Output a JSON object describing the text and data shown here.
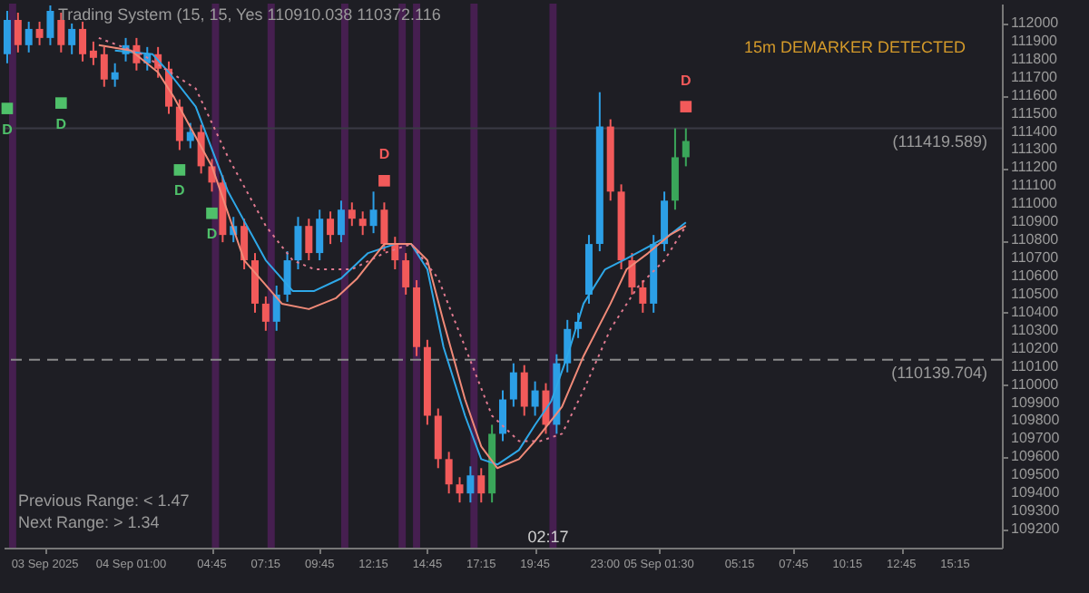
{
  "chart_data": {
    "type": "candlestick",
    "annotations": [
      "Trading System (15, 15, Yes 110910.038 110372.116",
      "15m DEMARKER DETECTED",
      "Previous Range: < 1.47",
      "Next Range: > 1.34",
      "02:17"
    ],
    "x": [
      "2025-09-03T19:15",
      "2025-09-03T19:45",
      "2025-09-03T20:15",
      "2025-09-03T20:45",
      "2025-09-03T21:15",
      "2025-09-03T21:45",
      "2025-09-03T22:15",
      "2025-09-03T22:45",
      "2025-09-03T23:15",
      "2025-09-03T23:45",
      "2025-09-04T00:15",
      "2025-09-04T00:45",
      "2025-09-04T01:15",
      "2025-09-04T01:45",
      "2025-09-04T02:15",
      "2025-09-04T02:45",
      "2025-09-04T03:15",
      "2025-09-04T03:45",
      "2025-09-04T04:15",
      "2025-09-04T04:45",
      "2025-09-04T05:15",
      "2025-09-04T05:45",
      "2025-09-04T06:15",
      "2025-09-04T06:45",
      "2025-09-04T07:15",
      "2025-09-04T07:45",
      "2025-09-04T08:15",
      "2025-09-04T08:45",
      "2025-09-04T09:15",
      "2025-09-04T09:45",
      "2025-09-04T10:15",
      "2025-09-04T10:45",
      "2025-09-04T11:15",
      "2025-09-04T11:45",
      "2025-09-04T12:15",
      "2025-09-04T12:45",
      "2025-09-04T13:15",
      "2025-09-04T13:45",
      "2025-09-04T14:15",
      "2025-09-04T14:45",
      "2025-09-04T15:15",
      "2025-09-04T15:45",
      "2025-09-04T16:15",
      "2025-09-04T16:45",
      "2025-09-04T17:15",
      "2025-09-04T17:45",
      "2025-09-04T18:15",
      "2025-09-04T18:45",
      "2025-09-04T19:15",
      "2025-09-04T19:45",
      "2025-09-04T20:15",
      "2025-09-04T20:45",
      "2025-09-04T21:15",
      "2025-09-04T21:45",
      "2025-09-04T22:15",
      "2025-09-04T22:45",
      "2025-09-04T23:15",
      "2025-09-04T23:45",
      "2025-09-05T00:15",
      "2025-09-05T00:45",
      "2025-09-05T01:15",
      "2025-09-05T01:45",
      "2025-09-05T02:15",
      "2025-09-05T02:45"
    ],
    "ohlc": [
      [
        111830,
        112070,
        111780,
        112020
      ],
      [
        112020,
        112060,
        111840,
        111880
      ],
      [
        111880,
        112010,
        111840,
        111970
      ],
      [
        111970,
        112010,
        111880,
        111920
      ],
      [
        111920,
        112100,
        111880,
        112070
      ],
      [
        112020,
        112060,
        111840,
        111880
      ],
      [
        111880,
        112000,
        111830,
        111970
      ],
      [
        111970,
        112010,
        111790,
        111830
      ],
      [
        111850,
        111900,
        111770,
        111810
      ],
      [
        111830,
        111870,
        111650,
        111690
      ],
      [
        111690,
        111780,
        111650,
        111730
      ],
      [
        111830,
        111920,
        111790,
        111880
      ],
      [
        111880,
        111920,
        111740,
        111780
      ],
      [
        111780,
        111870,
        111740,
        111830
      ],
      [
        111830,
        111870,
        111700,
        111750
      ],
      [
        111750,
        111790,
        111500,
        111540
      ],
      [
        111540,
        111580,
        111300,
        111350
      ],
      [
        111350,
        111450,
        111310,
        111400
      ],
      [
        111400,
        111440,
        111170,
        111210
      ],
      [
        111210,
        111250,
        111070,
        111120
      ],
      [
        111120,
        111160,
        110790,
        110830
      ],
      [
        110830,
        110930,
        110790,
        110880
      ],
      [
        110880,
        110920,
        110640,
        110690
      ],
      [
        110690,
        110730,
        110400,
        110450
      ],
      [
        110450,
        110490,
        110300,
        110350
      ],
      [
        110350,
        110550,
        110300,
        110500
      ],
      [
        110500,
        110740,
        110460,
        110690
      ],
      [
        110690,
        110930,
        110640,
        110880
      ],
      [
        110880,
        110920,
        110690,
        110730
      ],
      [
        110730,
        110970,
        110690,
        110920
      ],
      [
        110920,
        110960,
        110780,
        110830
      ],
      [
        110830,
        111020,
        110790,
        110970
      ],
      [
        110970,
        111010,
        110880,
        110920
      ],
      [
        110920,
        110960,
        110830,
        110880
      ],
      [
        110880,
        111070,
        110840,
        110970
      ],
      [
        110970,
        111010,
        110740,
        110780
      ],
      [
        110780,
        110820,
        110640,
        110690
      ],
      [
        110690,
        110730,
        110500,
        110540
      ],
      [
        110540,
        110580,
        110160,
        110210
      ],
      [
        110210,
        110250,
        109780,
        109830
      ],
      [
        109830,
        109870,
        109540,
        109590
      ],
      [
        109590,
        109630,
        109400,
        109450
      ],
      [
        109450,
        109490,
        109350,
        109400
      ],
      [
        109400,
        109550,
        109350,
        109500
      ],
      [
        109500,
        109540,
        109350,
        109400
      ],
      [
        109400,
        109780,
        109350,
        109730
      ],
      [
        109730,
        109970,
        109690,
        109920
      ],
      [
        109920,
        110120,
        109880,
        110070
      ],
      [
        110070,
        110110,
        109830,
        109880
      ],
      [
        109880,
        110020,
        109830,
        109970
      ],
      [
        109970,
        110010,
        109730,
        109780
      ],
      [
        109780,
        110170,
        109730,
        110120
      ],
      [
        110120,
        110360,
        110070,
        110310
      ],
      [
        110310,
        110400,
        110260,
        110350
      ],
      [
        110500,
        110830,
        110450,
        110780
      ],
      [
        110780,
        111620,
        110740,
        111430
      ],
      [
        111430,
        111470,
        111020,
        111070
      ],
      [
        111070,
        111110,
        110640,
        110690
      ],
      [
        110690,
        110730,
        110500,
        110540
      ],
      [
        110540,
        110580,
        110400,
        110450
      ],
      [
        110450,
        110830,
        110400,
        110780
      ],
      [
        110780,
        111070,
        110740,
        111020
      ],
      [
        111020,
        111420,
        110970,
        111260
      ],
      [
        111260,
        111420,
        111210,
        111350
      ]
    ],
    "colors": [
      "#2c9fe6",
      "#f25a5a",
      "#2c9fe6",
      "#f25a5a",
      "#2c9fe6",
      "#f25a5a",
      "#2c9fe6",
      "#f25a5a",
      "#f25a5a",
      "#f25a5a",
      "#2c9fe6",
      "#2c9fe6",
      "#f25a5a",
      "#2c9fe6",
      "#f25a5a",
      "#f25a5a",
      "#f25a5a",
      "#2c9fe6",
      "#f25a5a",
      "#f25a5a",
      "#f25a5a",
      "#2c9fe6",
      "#f25a5a",
      "#f25a5a",
      "#f25a5a",
      "#2c9fe6",
      "#2c9fe6",
      "#2c9fe6",
      "#f25a5a",
      "#2c9fe6",
      "#f25a5a",
      "#2c9fe6",
      "#f25a5a",
      "#f25a5a",
      "#2c9fe6",
      "#f25a5a",
      "#f25a5a",
      "#f25a5a",
      "#f25a5a",
      "#f25a5a",
      "#f25a5a",
      "#f25a5a",
      "#f25a5a",
      "#2c9fe6",
      "#f25a5a",
      "#3aa65a",
      "#2c9fe6",
      "#2c9fe6",
      "#f25a5a",
      "#2c9fe6",
      "#f25a5a",
      "#2c9fe6",
      "#2c9fe6",
      "#2c9fe6",
      "#2c9fe6",
      "#2c9fe6",
      "#f25a5a",
      "#f25a5a",
      "#f25a5a",
      "#f25a5a",
      "#2c9fe6",
      "#2c9fe6",
      "#3aa65a",
      "#3aa65a"
    ],
    "series": [
      {
        "type": "line",
        "color": "#2ea8e8",
        "x": [
          "2025-09-04T00:15",
          "2025-09-04T02:00",
          "2025-09-04T02:45",
          "2025-09-04T04:00",
          "2025-09-04T05:30",
          "2025-09-04T07:15",
          "2025-09-04T08:30",
          "2025-09-04T09:30",
          "2025-09-04T10:45",
          "2025-09-04T12:00",
          "2025-09-04T13:15",
          "2025-09-04T14:00",
          "2025-09-04T14:45",
          "2025-09-04T15:30",
          "2025-09-04T16:30",
          "2025-09-04T17:15",
          "2025-09-04T18:00",
          "2025-09-04T19:00",
          "2025-09-04T19:45",
          "2025-09-04T20:30",
          "2025-09-04T21:15",
          "2025-09-04T22:00",
          "2025-09-04T23:00",
          "2025-09-05T00:00",
          "2025-09-05T01:15",
          "2025-09-05T02:00",
          "2025-09-05T02:45"
        ],
        "values": [
          111850,
          111830,
          111730,
          111540,
          111070,
          110690,
          110520,
          110520,
          110590,
          110730,
          110780,
          110780,
          110640,
          110210,
          109830,
          109590,
          109560,
          109640,
          109780,
          109910,
          110160,
          110450,
          110640,
          110700,
          110780,
          110830,
          110900
        ]
      },
      {
        "type": "line",
        "color": "#f08a78",
        "x": [
          "2025-09-03T23:30",
          "2025-09-04T01:00",
          "2025-09-04T02:15",
          "2025-09-04T03:00",
          "2025-09-04T04:45",
          "2025-09-04T06:15",
          "2025-09-04T08:00",
          "2025-09-04T09:15",
          "2025-09-04T10:30",
          "2025-09-04T11:30",
          "2025-09-04T12:45",
          "2025-09-04T14:00",
          "2025-09-04T14:45",
          "2025-09-04T15:30",
          "2025-09-04T16:30",
          "2025-09-04T17:15",
          "2025-09-04T18:00",
          "2025-09-04T19:00",
          "2025-09-04T19:45",
          "2025-09-04T21:00",
          "2025-09-04T22:00",
          "2025-09-04T23:15",
          "2025-09-05T00:00",
          "2025-09-05T01:00",
          "2025-09-05T02:00",
          "2025-09-05T02:45"
        ],
        "values": [
          111880,
          111850,
          111730,
          111590,
          111210,
          110690,
          110450,
          110420,
          110480,
          110590,
          110780,
          110780,
          110690,
          110350,
          109920,
          109660,
          109540,
          109590,
          109690,
          109880,
          110160,
          110450,
          110640,
          110730,
          110830,
          110880
        ]
      },
      {
        "type": "line",
        "color": "#e07a90",
        "line_style": "dotted",
        "x": [
          "2025-09-03T23:30",
          "2025-09-04T01:30",
          "2025-09-04T04:00",
          "2025-09-04T05:30",
          "2025-09-04T07:15",
          "2025-09-04T08:30",
          "2025-09-04T09:30",
          "2025-09-04T11:15",
          "2025-09-04T12:45",
          "2025-09-04T14:00",
          "2025-09-04T15:15",
          "2025-09-04T16:30",
          "2025-09-04T17:45",
          "2025-09-04T19:00",
          "2025-09-04T20:00",
          "2025-09-04T21:00",
          "2025-09-04T22:00",
          "2025-09-04T23:15",
          "2025-09-05T00:30",
          "2025-09-05T01:45",
          "2025-09-05T02:45"
        ],
        "values": [
          111920,
          111830,
          111640,
          111260,
          110880,
          110690,
          110640,
          110640,
          110730,
          110780,
          110590,
          110210,
          109830,
          109690,
          109690,
          109730,
          109970,
          110310,
          110540,
          110690,
          110880
        ]
      },
      {
        "type": "scatter",
        "marker": "square",
        "color": "#4fc06a",
        "x": [
          "2025-09-03T19:15",
          "2025-09-03T21:45",
          "2025-09-04T03:15",
          "2025-09-04T04:45"
        ],
        "values": [
          111530,
          111560,
          111190,
          110950
        ],
        "value_labels": [
          "D",
          "D",
          "D",
          "D"
        ]
      },
      {
        "type": "scatter",
        "marker": "square",
        "color": "#f25a5a",
        "x": [
          "2025-09-04T12:45",
          "2025-09-05T02:45"
        ],
        "values": [
          111130,
          111540
        ],
        "value_labels": [
          "D",
          "D"
        ]
      }
    ],
    "xlim": [
      "2025-09-03T19:05",
      "2025-09-05T17:25"
    ],
    "ylim": [
      109100,
      112110
    ],
    "xticks": [
      {
        "value": "2025-09-03T21:00",
        "label": "03 Sep 2025"
      },
      {
        "value": "2025-09-04T01:00",
        "label": "04 Sep 01:00"
      },
      {
        "value": "2025-09-04T04:45",
        "label": "04:45"
      },
      {
        "value": "2025-09-04T07:15",
        "label": "07:15"
      },
      {
        "value": "2025-09-04T09:45",
        "label": "09:45"
      },
      {
        "value": "2025-09-04T12:15",
        "label": "12:15"
      },
      {
        "value": "2025-09-04T14:45",
        "label": "14:45"
      },
      {
        "value": "2025-09-04T17:15",
        "label": "17:15"
      },
      {
        "value": "2025-09-04T19:45",
        "label": "19:45"
      },
      {
        "value": "2025-09-04T23:00",
        "label": "23:00"
      },
      {
        "value": "2025-09-05T01:30",
        "label": "05 Sep 01:30"
      },
      {
        "value": "2025-09-05T05:15",
        "label": "05:15"
      },
      {
        "value": "2025-09-05T07:45",
        "label": "07:45"
      },
      {
        "value": "2025-09-05T10:15",
        "label": "10:15"
      },
      {
        "value": "2025-09-05T12:45",
        "label": "12:45"
      },
      {
        "value": "2025-09-05T15:15",
        "label": "15:15"
      }
    ],
    "yticks": [
      109200,
      109300,
      109400,
      109500,
      109600,
      109700,
      109800,
      109900,
      110000,
      110100,
      110200,
      110300,
      110400,
      110500,
      110600,
      110700,
      110800,
      110900,
      111000,
      111100,
      111200,
      111300,
      111400,
      111500,
      111600,
      111700,
      111800,
      111900,
      112000
    ],
    "ref_lines": [
      {
        "axis": "y",
        "value": 111419.589,
        "label": "(111419.589)",
        "color": "#3a3a44",
        "line_style": "solid"
      },
      {
        "axis": "y",
        "value": 110139.704,
        "label": "(110139.704)",
        "color": "#8a8a8a",
        "line_style": "dashed"
      }
    ],
    "bands": [
      {
        "axis": "x",
        "from": "2025-09-03T19:20",
        "to": "2025-09-03T19:40",
        "color": "#4a1f55"
      },
      {
        "axis": "x",
        "from": "2025-09-04T04:45",
        "to": "2025-09-04T05:05",
        "color": "#4a1f55"
      },
      {
        "axis": "x",
        "from": "2025-09-04T07:20",
        "to": "2025-09-04T07:40",
        "color": "#4a1f55"
      },
      {
        "axis": "x",
        "from": "2025-09-04T10:45",
        "to": "2025-09-04T11:05",
        "color": "#4a1f55"
      },
      {
        "axis": "x",
        "from": "2025-09-04T13:25",
        "to": "2025-09-04T13:45",
        "color": "#4a1f55"
      },
      {
        "axis": "x",
        "from": "2025-09-04T14:05",
        "to": "2025-09-04T14:25",
        "color": "#4a1f55"
      },
      {
        "axis": "x",
        "from": "2025-09-04T16:45",
        "to": "2025-09-04T17:05",
        "color": "#4a1f55"
      },
      {
        "axis": "x",
        "from": "2025-09-04T20:25",
        "to": "2025-09-04T20:45",
        "color": "#4a1f55"
      }
    ]
  }
}
